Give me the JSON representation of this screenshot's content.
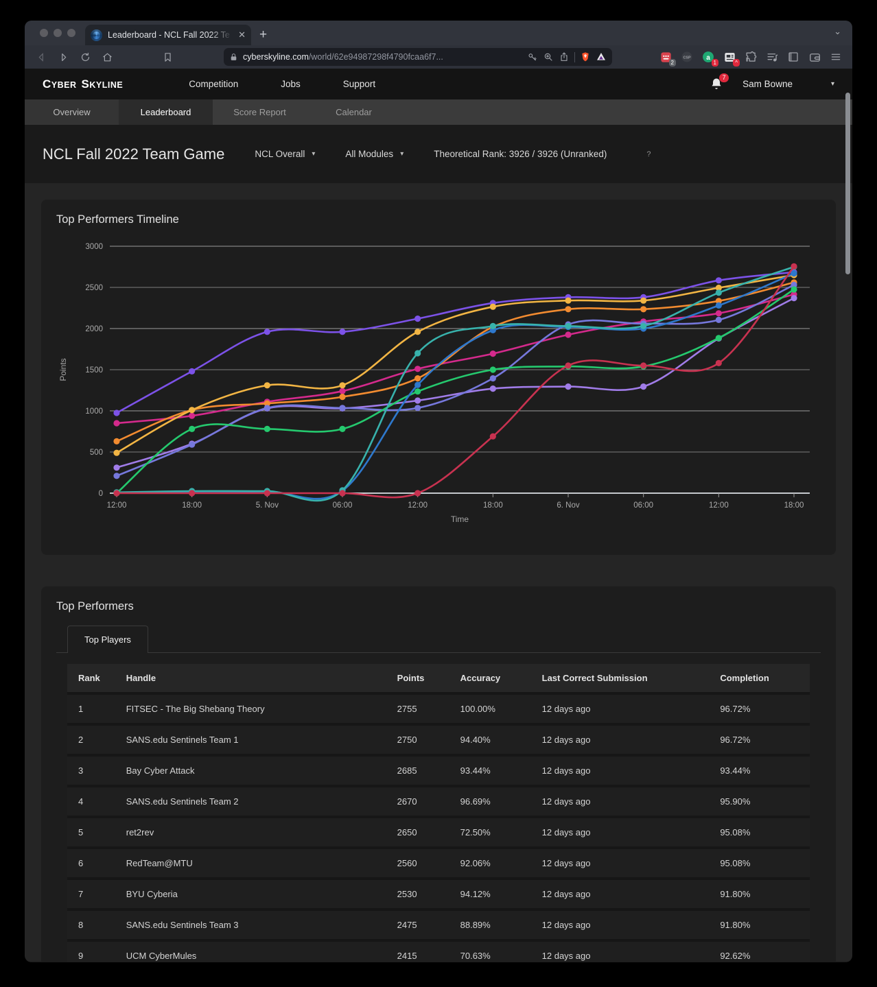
{
  "browser": {
    "tab_title": "Leaderboard - NCL Fall 2022 Te",
    "close_glyph": "✕",
    "newtab_glyph": "+",
    "tabsearch_glyph": "⌄",
    "url_host": "cyberskyline.com",
    "url_path": "/world/62e94987298f4790fcaa6f7...",
    "ext_grid_badge": "2",
    "ext_csp_label": "CSP",
    "ext_a_label": "a",
    "ext_a_badge": "1",
    "notification_badge": "7"
  },
  "header": {
    "logo_word1": "Cyber",
    "logo_word2": "Skyline",
    "nav": [
      "Competition",
      "Jobs",
      "Support"
    ],
    "user": "Sam Bowne",
    "caret": "▾"
  },
  "subnav": {
    "items": [
      "Overview",
      "Leaderboard",
      "Score Report",
      "Calendar"
    ]
  },
  "page": {
    "title": "NCL Fall 2022 Team Game",
    "scope_filter": "NCL Overall",
    "module_filter": "All Modules",
    "rank_text": "Theoretical Rank: 3926 / 3926 (Unranked)",
    "help": "?",
    "caret": "▾"
  },
  "chart_card": {
    "title": "Top Performers Timeline"
  },
  "chart_data": {
    "type": "line",
    "title": "Top Performers Timeline",
    "xlabel": "Time",
    "ylabel": "Points",
    "ylim": [
      0,
      3000
    ],
    "ytick_step": 500,
    "grid": true,
    "legend": "none",
    "categories": [
      "12:00",
      "18:00",
      "5. Nov",
      "06:00",
      "12:00",
      "18:00",
      "6. Nov",
      "06:00",
      "12:00",
      "18:00"
    ],
    "series": [
      {
        "name": "violet",
        "color": "#7c52e8",
        "values": [
          975,
          1480,
          1960,
          1960,
          2120,
          2310,
          2380,
          2380,
          2585,
          2685
        ]
      },
      {
        "name": "magenta",
        "color": "#d42a8c",
        "values": [
          850,
          940,
          1110,
          1240,
          1510,
          1695,
          1925,
          2085,
          2185,
          2415
        ]
      },
      {
        "name": "orange",
        "color": "#f28b30",
        "values": [
          630,
          1010,
          1090,
          1170,
          1395,
          2020,
          2235,
          2235,
          2335,
          2560
        ]
      },
      {
        "name": "gold",
        "color": "#f2b544",
        "values": [
          490,
          1010,
          1310,
          1310,
          1960,
          2265,
          2340,
          2340,
          2495,
          2650
        ]
      },
      {
        "name": "lavender",
        "color": "#a07ce8",
        "values": [
          310,
          600,
          1030,
          1030,
          1125,
          1270,
          1295,
          1295,
          1880,
          2370
        ]
      },
      {
        "name": "periwinkle",
        "color": "#7678dc",
        "values": [
          210,
          590,
          1035,
          1035,
          1035,
          1395,
          2050,
          2060,
          2105,
          2530
        ]
      },
      {
        "name": "green",
        "color": "#25c96e",
        "values": [
          0,
          780,
          780,
          780,
          1235,
          1500,
          1540,
          1540,
          1885,
          2475
        ]
      },
      {
        "name": "blue",
        "color": "#2e78cc",
        "values": [
          5,
          20,
          20,
          30,
          1315,
          1980,
          2020,
          2000,
          2280,
          2670
        ]
      },
      {
        "name": "teal",
        "color": "#38b2ac",
        "values": [
          10,
          25,
          25,
          35,
          1700,
          2030,
          2030,
          2030,
          2435,
          2750
        ]
      },
      {
        "name": "crimson",
        "color": "#c83250",
        "values": [
          0,
          0,
          0,
          0,
          0,
          690,
          1550,
          1550,
          1580,
          2755
        ]
      }
    ]
  },
  "table_card": {
    "title": "Top Performers",
    "tab": "Top Players",
    "columns": [
      "Rank",
      "Handle",
      "Points",
      "Accuracy",
      "Last Correct Submission",
      "Completion"
    ],
    "rows": [
      {
        "rank": "1",
        "handle": "FITSEC - The Big Shebang Theory",
        "points": "2755",
        "accuracy": "100.00%",
        "last": "12 days ago",
        "completion": "96.72%"
      },
      {
        "rank": "2",
        "handle": "SANS.edu Sentinels Team 1",
        "points": "2750",
        "accuracy": "94.40%",
        "last": "12 days ago",
        "completion": "96.72%"
      },
      {
        "rank": "3",
        "handle": "Bay Cyber Attack",
        "points": "2685",
        "accuracy": "93.44%",
        "last": "12 days ago",
        "completion": "93.44%"
      },
      {
        "rank": "4",
        "handle": "SANS.edu Sentinels Team 2",
        "points": "2670",
        "accuracy": "96.69%",
        "last": "12 days ago",
        "completion": "95.90%"
      },
      {
        "rank": "5",
        "handle": "ret2rev",
        "points": "2650",
        "accuracy": "72.50%",
        "last": "12 days ago",
        "completion": "95.08%"
      },
      {
        "rank": "6",
        "handle": "RedTeam@MTU",
        "points": "2560",
        "accuracy": "92.06%",
        "last": "12 days ago",
        "completion": "95.08%"
      },
      {
        "rank": "7",
        "handle": "BYU Cyberia",
        "points": "2530",
        "accuracy": "94.12%",
        "last": "12 days ago",
        "completion": "91.80%"
      },
      {
        "rank": "8",
        "handle": "SANS.edu Sentinels Team 3",
        "points": "2475",
        "accuracy": "88.89%",
        "last": "12 days ago",
        "completion": "91.80%"
      },
      {
        "rank": "9",
        "handle": "UCM CyberMules",
        "points": "2415",
        "accuracy": "70.63%",
        "last": "12 days ago",
        "completion": "92.62%"
      }
    ]
  }
}
